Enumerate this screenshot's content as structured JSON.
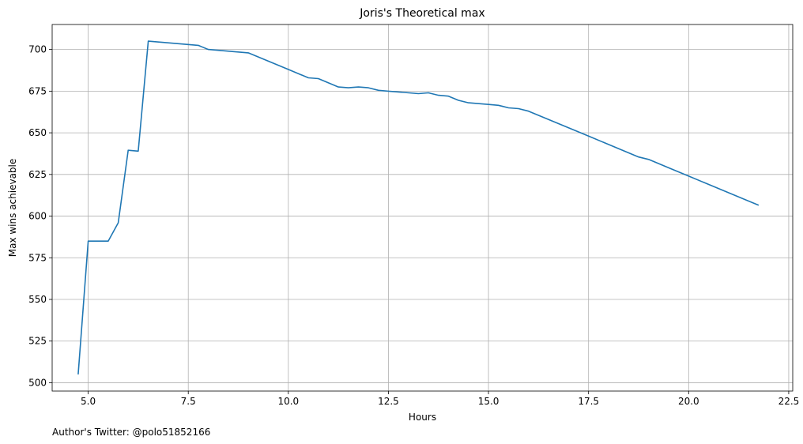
{
  "chart_data": {
    "type": "line",
    "title": "Joris's Theoretical max",
    "xlabel": "Hours",
    "ylabel": "Max wins achievable",
    "footer": "Author's Twitter: @polo51852166",
    "xlim": [
      4.1,
      22.6
    ],
    "ylim": [
      495,
      715
    ],
    "xticks": [
      5.0,
      7.5,
      10.0,
      12.5,
      15.0,
      17.5,
      20.0,
      22.5
    ],
    "xtick_labels": [
      "5.0",
      "7.5",
      "10.0",
      "12.5",
      "15.0",
      "17.5",
      "20.0",
      "22.5"
    ],
    "yticks": [
      500,
      525,
      550,
      575,
      600,
      625,
      650,
      675,
      700
    ],
    "ytick_labels": [
      "500",
      "525",
      "550",
      "575",
      "600",
      "625",
      "650",
      "675",
      "700"
    ],
    "grid": true,
    "color": "#1f77b4",
    "series": [
      {
        "x": [
          4.75,
          5.0,
          5.25,
          5.5,
          5.75,
          6.0,
          6.25,
          6.5,
          7.75,
          8.0,
          9.0,
          10.0,
          10.5,
          10.75,
          11.25,
          11.5,
          11.75,
          12.0,
          12.25,
          12.5,
          13.25,
          13.5,
          13.75,
          14.0,
          14.25,
          14.5,
          15.0,
          15.25,
          15.5,
          15.75,
          16.0,
          17.5,
          18.75,
          19.0,
          19.5,
          20.0,
          21.75
        ],
        "y": [
          505,
          585,
          585,
          585,
          596,
          639.5,
          639,
          705,
          702.5,
          700,
          698,
          688,
          683,
          682.5,
          677.5,
          677,
          677.5,
          677,
          675.5,
          675,
          673.5,
          674,
          672.5,
          672,
          669.5,
          668,
          667,
          666.5,
          665,
          664.5,
          663,
          648,
          635.5,
          634,
          629,
          624,
          606.5
        ]
      }
    ]
  }
}
